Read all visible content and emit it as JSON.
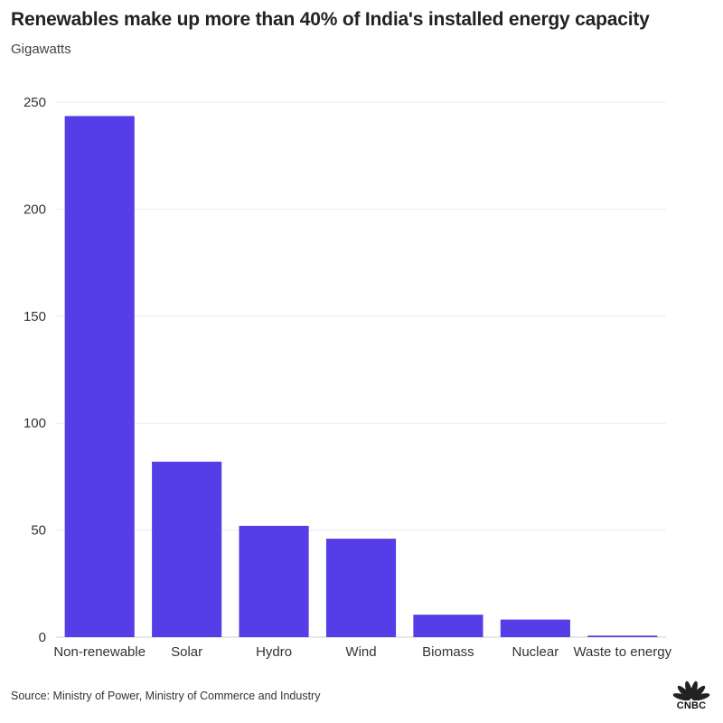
{
  "chart_data": {
    "type": "bar",
    "title": "Renewables make up more than 40% of India's installed energy capacity",
    "subtitle": "Gigawatts",
    "categories": [
      "Non-renewable",
      "Solar",
      "Hydro",
      "Wind",
      "Biomass",
      "Nuclear",
      "Waste to energy"
    ],
    "values": [
      243.5,
      82,
      52,
      46,
      10.5,
      8.2,
      0.7
    ],
    "yticks": [
      0,
      50,
      100,
      150,
      200,
      250
    ],
    "ylim": [
      0,
      250
    ],
    "grid": true,
    "bar_color": "#553ee8",
    "source": "Source: Ministry of Power, Ministry of Commerce and Industry"
  },
  "logo": {
    "text": "CNBC",
    "icon": "cnbc-peacock-icon"
  }
}
